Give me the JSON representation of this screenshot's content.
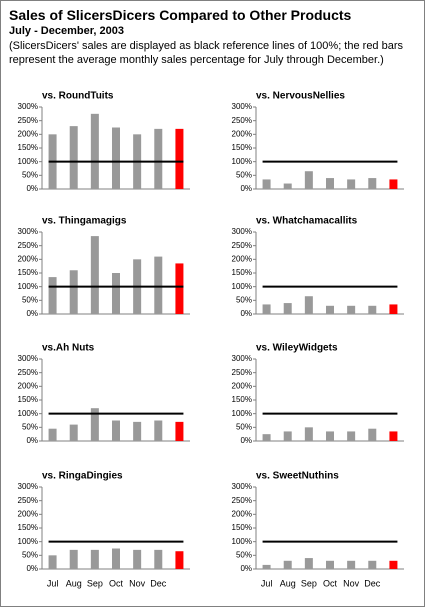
{
  "header": {
    "title": "Sales of SlicersDicers Compared to Other Products",
    "subtitle": "July - December, 2003",
    "description": "(SlicersDicers' sales are displayed as black reference lines of 100%; the red bars represent the average monthly sales percentage for July through December.)"
  },
  "chart_data": [
    {
      "type": "bar",
      "title": "vs. RoundTuits",
      "values": [
        200,
        230,
        275,
        225,
        200,
        220,
        220
      ],
      "color": "#999999",
      "average_color": "#ff0000",
      "reference_line": 100,
      "ylim": [
        0,
        300
      ],
      "yticks": [
        {
          "value": 0,
          "label": "0%"
        },
        {
          "value": 50,
          "label": "50%"
        },
        {
          "value": 100,
          "label": "100%"
        },
        {
          "value": 150,
          "label": "150%"
        },
        {
          "value": 200,
          "label": "200%"
        },
        {
          "value": 250,
          "label": "250%"
        },
        {
          "value": 300,
          "label": "300%"
        }
      ]
    },
    {
      "type": "bar",
      "title": "vs. NervousNellies",
      "values": [
        35,
        20,
        65,
        40,
        35,
        40,
        35
      ],
      "color": "#999999",
      "average_color": "#ff0000",
      "reference_line": 100,
      "ylim": [
        0,
        300
      ],
      "yticks": [
        {
          "value": 0,
          "label": "0%"
        },
        {
          "value": 50,
          "label": "50%"
        },
        {
          "value": 100,
          "label": "100%"
        },
        {
          "value": 150,
          "label": "150%"
        },
        {
          "value": 200,
          "label": "200%"
        },
        {
          "value": 250,
          "label": "250%"
        },
        {
          "value": 300,
          "label": "300%"
        }
      ]
    },
    {
      "type": "bar",
      "title": "vs. Thingamagigs",
      "values": [
        135,
        160,
        285,
        150,
        200,
        210,
        185
      ],
      "color": "#999999",
      "average_color": "#ff0000",
      "reference_line": 100,
      "ylim": [
        0,
        300
      ],
      "yticks": [
        {
          "value": 0,
          "label": "0%"
        },
        {
          "value": 50,
          "label": "50%"
        },
        {
          "value": 100,
          "label": "100%"
        },
        {
          "value": 150,
          "label": "150%"
        },
        {
          "value": 200,
          "label": "200%"
        },
        {
          "value": 250,
          "label": "250%"
        },
        {
          "value": 300,
          "label": "300%"
        }
      ]
    },
    {
      "type": "bar",
      "title": "vs. Whatchamacallits",
      "values": [
        35,
        40,
        65,
        30,
        30,
        30,
        35
      ],
      "color": "#999999",
      "average_color": "#ff0000",
      "reference_line": 100,
      "ylim": [
        0,
        300
      ],
      "yticks": [
        {
          "value": 0,
          "label": "0%"
        },
        {
          "value": 50,
          "label": "50%"
        },
        {
          "value": 100,
          "label": "100%"
        },
        {
          "value": 150,
          "label": "150%"
        },
        {
          "value": 200,
          "label": "200%"
        },
        {
          "value": 250,
          "label": "250%"
        },
        {
          "value": 300,
          "label": "300%"
        }
      ]
    },
    {
      "type": "bar",
      "title": "vs.Ah Nuts",
      "values": [
        45,
        60,
        120,
        75,
        70,
        75,
        70
      ],
      "color": "#999999",
      "average_color": "#ff0000",
      "reference_line": 100,
      "ylim": [
        0,
        300
      ],
      "yticks": [
        {
          "value": 0,
          "label": "0%"
        },
        {
          "value": 50,
          "label": "50%"
        },
        {
          "value": 100,
          "label": "100%"
        },
        {
          "value": 150,
          "label": "150%"
        },
        {
          "value": 200,
          "label": "200%"
        },
        {
          "value": 250,
          "label": "250%"
        },
        {
          "value": 300,
          "label": "300%"
        }
      ]
    },
    {
      "type": "bar",
      "title": "vs. WileyWidgets",
      "values": [
        25,
        35,
        50,
        35,
        35,
        45,
        35
      ],
      "color": "#999999",
      "average_color": "#ff0000",
      "reference_line": 100,
      "ylim": [
        0,
        300
      ],
      "yticks": [
        {
          "value": 0,
          "label": "0%"
        },
        {
          "value": 50,
          "label": "50%"
        },
        {
          "value": 100,
          "label": "100%"
        },
        {
          "value": 150,
          "label": "150%"
        },
        {
          "value": 200,
          "label": "200%"
        },
        {
          "value": 250,
          "label": "250%"
        },
        {
          "value": 300,
          "label": "300%"
        }
      ]
    },
    {
      "type": "bar",
      "title": "vs. RingaDingies",
      "categories": [
        "Jul",
        "Aug",
        "Sep",
        "Oct",
        "Nov",
        "Dec",
        null
      ],
      "values": [
        50,
        70,
        70,
        75,
        70,
        70,
        65
      ],
      "color": "#999999",
      "average_color": "#ff0000",
      "reference_line": 100,
      "ylim": [
        0,
        300
      ],
      "yticks": [
        {
          "value": 0,
          "label": "0%"
        },
        {
          "value": 50,
          "label": "50%"
        },
        {
          "value": 100,
          "label": "100%"
        },
        {
          "value": 150,
          "label": "150%"
        },
        {
          "value": 200,
          "label": "200%"
        },
        {
          "value": 250,
          "label": "250%"
        },
        {
          "value": 300,
          "label": "300%"
        }
      ]
    },
    {
      "type": "bar",
      "title": "vs. SweetNuthins",
      "categories": [
        "Jul",
        "Aug",
        "Sep",
        "Oct",
        "Nov",
        "Dec",
        null
      ],
      "values": [
        15,
        30,
        40,
        30,
        30,
        30,
        30
      ],
      "color": "#999999",
      "average_color": "#ff0000",
      "reference_line": 100,
      "ylim": [
        0,
        300
      ],
      "yticks": [
        {
          "value": 0,
          "label": "0%"
        },
        {
          "value": 50,
          "label": "50%"
        },
        {
          "value": 100,
          "label": "100%"
        },
        {
          "value": 150,
          "label": "150%"
        },
        {
          "value": 200,
          "label": "200%"
        },
        {
          "value": 250,
          "label": "250%"
        },
        {
          "value": 300,
          "label": "300%"
        }
      ]
    }
  ]
}
